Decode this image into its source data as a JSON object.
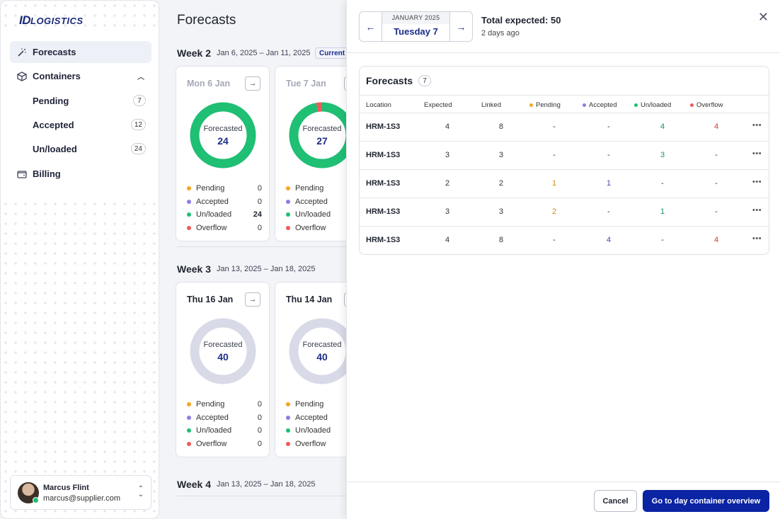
{
  "brand": {
    "logo_id": "ID",
    "logo_rest": "LOGISTICS"
  },
  "sidebar": {
    "items": [
      {
        "label": "Forecasts",
        "icon": "wand-icon"
      },
      {
        "label": "Containers",
        "icon": "box-icon"
      },
      {
        "label": "Billing",
        "icon": "wallet-icon"
      }
    ],
    "sub_items": [
      {
        "label": "Pending",
        "count": "7"
      },
      {
        "label": "Accepted",
        "count": "12"
      },
      {
        "label": "Un/loaded",
        "count": "24"
      }
    ],
    "user": {
      "name": "Marcus Flint",
      "email": "marcus@supplier.com"
    }
  },
  "main": {
    "title": "Forecasts",
    "current_tag": "Current w",
    "weeks": [
      {
        "label": "Week 2",
        "range": "Jan 6, 2025 – Jan 11, 2025"
      },
      {
        "label": "Week 3",
        "range": "Jan 13, 2025 – Jan 18, 2025"
      },
      {
        "label": "Week 4",
        "range": "Jan 13, 2025 – Jan 18, 2025"
      }
    ],
    "donut_label": "Forecasted",
    "legend_labels": [
      "Pending",
      "Accepted",
      "Un/loaded",
      "Overflow"
    ],
    "cards": [
      {
        "day": "Mon 6 Jan",
        "forecasted": "24",
        "values": [
          "0",
          "0",
          "24",
          "0"
        ],
        "unloaded_fraction": 1.0,
        "overflow_fraction": 0.0
      },
      {
        "day": "Tue 7 Jan",
        "forecasted": "27",
        "values": [
          "",
          "",
          "",
          ""
        ],
        "unloaded_fraction": 0.97,
        "overflow_fraction": 0.03
      },
      {
        "day": "Thu 16 Jan",
        "forecasted": "40",
        "values": [
          "0",
          "0",
          "0",
          "0"
        ],
        "unloaded_fraction": 0.0,
        "overflow_fraction": 0.0
      },
      {
        "day": "Thu 14 Jan",
        "forecasted": "40",
        "values": [
          "",
          "",
          "",
          ""
        ],
        "unloaded_fraction": 0.0,
        "overflow_fraction": 0.0
      }
    ]
  },
  "panel": {
    "month": "JANUARY 2025",
    "day": "Tuesday 7",
    "total": "Total expected: 50",
    "ago": "2 days ago",
    "table_title": "Forecasts",
    "table_count": "7",
    "columns": [
      "Location",
      "Expected",
      "Linked",
      "Pending",
      "Accepted",
      "Un/loaded",
      "Overflow"
    ],
    "rows": [
      [
        "HRM-1S3",
        "4",
        "8",
        "-",
        "-",
        "4",
        "4"
      ],
      [
        "HRM-1S3",
        "3",
        "3",
        "-",
        "-",
        "3",
        "-"
      ],
      [
        "HRM-1S3",
        "2",
        "2",
        "1",
        "1",
        "-",
        "-"
      ],
      [
        "HRM-1S3",
        "3",
        "3",
        "2",
        "-",
        "1",
        "-"
      ],
      [
        "HRM-1S3",
        "4",
        "8",
        "-",
        "4",
        "-",
        "4"
      ]
    ],
    "cancel_label": "Cancel",
    "go_label": "Go to day container overview"
  },
  "colors": {
    "pending": "#f5a524",
    "accepted": "#8b7ee6",
    "unloaded": "#1fbf74",
    "overflow": "#ef5a5a",
    "ring_empty": "#d9dae7",
    "primary": "#0a24a3"
  }
}
